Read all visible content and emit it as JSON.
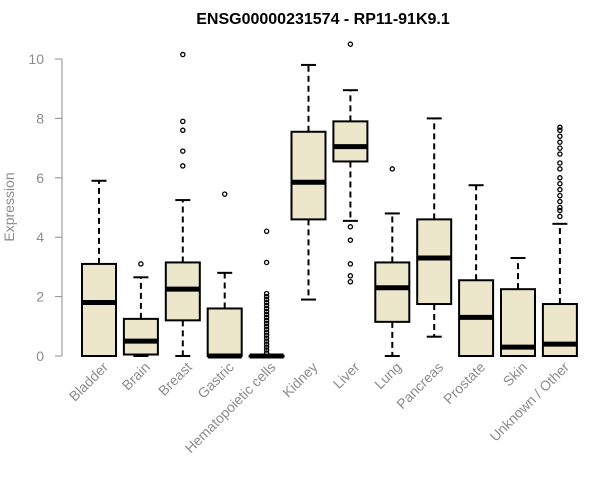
{
  "chart_data": {
    "type": "boxplot",
    "title": "ENSG00000231574 - RP11-91K9.1",
    "xlabel": "",
    "ylabel": "Expression",
    "ylim": [
      0,
      10.5
    ],
    "yticks": [
      0,
      2,
      4,
      6,
      8,
      10
    ],
    "box_color": "#ece6cb",
    "categories": [
      "Bladder",
      "Brain",
      "Breast",
      "Gastric",
      "Hematopoietic cells",
      "Kidney",
      "Liver",
      "Lung",
      "Pancreas",
      "Prostate",
      "Skin",
      "Unknown / Other"
    ],
    "boxes": [
      {
        "label": "Bladder",
        "whislo": 0,
        "q1": 0,
        "med": 1.8,
        "q3": 3.1,
        "whishi": 5.9,
        "outliers": []
      },
      {
        "label": "Brain",
        "whislo": 0,
        "q1": 0.05,
        "med": 0.5,
        "q3": 1.25,
        "whishi": 2.65,
        "outliers": [
          3.1
        ]
      },
      {
        "label": "Breast",
        "whislo": 0,
        "q1": 1.2,
        "med": 2.25,
        "q3": 3.15,
        "whishi": 5.25,
        "outliers": [
          6.4,
          6.9,
          7.6,
          7.9,
          10.15
        ]
      },
      {
        "label": "Gastric",
        "whislo": 0,
        "q1": 0,
        "med": 0,
        "q3": 1.6,
        "whishi": 2.8,
        "outliers": [
          5.45
        ]
      },
      {
        "label": "Hematopoietic cells",
        "whislo": 0,
        "q1": 0,
        "med": 0,
        "q3": 0,
        "whishi": 0,
        "outliers": [
          0.1,
          0.2,
          0.3,
          0.4,
          0.5,
          0.6,
          0.7,
          0.8,
          0.9,
          1.0,
          1.1,
          1.2,
          1.3,
          1.4,
          1.5,
          1.6,
          1.7,
          1.8,
          1.9,
          2.0,
          2.1,
          3.15,
          4.2
        ]
      },
      {
        "label": "Kidney",
        "whislo": 1.9,
        "q1": 4.6,
        "med": 5.85,
        "q3": 7.55,
        "whishi": 9.8,
        "outliers": []
      },
      {
        "label": "Liver",
        "whislo": 4.55,
        "q1": 6.55,
        "med": 7.05,
        "q3": 7.9,
        "whishi": 8.95,
        "outliers": [
          10.5,
          4.35,
          3.9,
          3.1,
          2.7,
          2.5
        ]
      },
      {
        "label": "Lung",
        "whislo": 0,
        "q1": 1.15,
        "med": 2.3,
        "q3": 3.15,
        "whishi": 4.8,
        "outliers": [
          6.3
        ]
      },
      {
        "label": "Pancreas",
        "whislo": 0.65,
        "q1": 1.75,
        "med": 3.3,
        "q3": 4.6,
        "whishi": 8.0,
        "outliers": []
      },
      {
        "label": "Prostate",
        "whislo": 0,
        "q1": 0,
        "med": 1.3,
        "q3": 2.55,
        "whishi": 5.75,
        "outliers": []
      },
      {
        "label": "Skin",
        "whislo": 0,
        "q1": 0,
        "med": 0.3,
        "q3": 2.25,
        "whishi": 3.3,
        "outliers": []
      },
      {
        "label": "Unknown / Other",
        "whislo": 0,
        "q1": 0,
        "med": 0.4,
        "q3": 1.75,
        "whishi": 4.45,
        "outliers": [
          4.7,
          4.9,
          5.0,
          5.2,
          5.4,
          5.6,
          5.8,
          6.0,
          6.3,
          6.5,
          6.8,
          7.0,
          7.2,
          7.4,
          7.6,
          7.7
        ]
      }
    ]
  }
}
